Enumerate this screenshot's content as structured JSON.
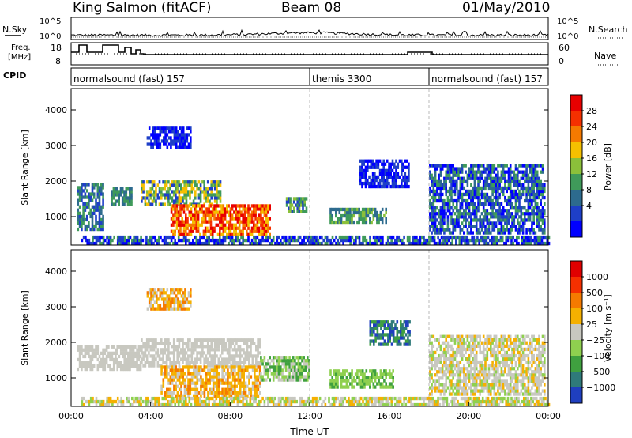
{
  "header": {
    "station": "King Salmon (fitACF)",
    "beam": "Beam 08",
    "date": "01/May/2010"
  },
  "noise_panel": {
    "left_label": "N.Sky",
    "right_label": "N.Search",
    "tick_top": "10^5",
    "tick_bottom": "10^0"
  },
  "freq_panel": {
    "left_label": "Freq.",
    "left_unit": "[MHz]",
    "right_label": "Nave",
    "left_ticks": [
      "18",
      "8"
    ],
    "right_ticks": [
      "60",
      "0"
    ]
  },
  "cpid_panel": {
    "label": "CPID",
    "segments": [
      {
        "text": "normalsound (fast) 157",
        "start": 0,
        "end": 12
      },
      {
        "text": "themis 3300",
        "start": 12,
        "end": 18
      },
      {
        "text": "normalsound (fast) 157",
        "start": 18,
        "end": 24
      }
    ]
  },
  "chart_data": [
    {
      "type": "heatmap",
      "name": "power",
      "ylabel": "Slant Range [km]",
      "ylim": [
        200,
        4600
      ],
      "yticks": [
        "4000",
        "3000",
        "2000",
        "1000"
      ],
      "xlim": [
        0,
        24
      ],
      "colorbar": {
        "label": "Power [dB]",
        "ticks": [
          "28",
          "24",
          "20",
          "16",
          "12",
          "8",
          "4"
        ],
        "colors": [
          "#0000ff",
          "#1e3fc8",
          "#2d6b8e",
          "#3f9a5a",
          "#8bc03a",
          "#f5c000",
          "#f57a00",
          "#f53000",
          "#e80000"
        ]
      }
    },
    {
      "type": "heatmap",
      "name": "velocity",
      "ylabel": "Slant Range [km]",
      "ylim": [
        200,
        4600
      ],
      "yticks": [
        "4000",
        "3000",
        "2000",
        "1000"
      ],
      "xlabel": "Time UT",
      "xticks": [
        "00:00",
        "04:00",
        "08:00",
        "12:00",
        "16:00",
        "20:00",
        "00:00"
      ],
      "xlim": [
        0,
        24
      ],
      "colorbar": {
        "label": "Velocity [m s⁻¹]",
        "ticks": [
          "1000",
          "500",
          "100",
          "25",
          "−25",
          "−100",
          "−500",
          "−1000"
        ],
        "colors": [
          "#1f3fbf",
          "#2f7a7a",
          "#3fa03f",
          "#8fd04f",
          "#c8c8c0",
          "#f5b000",
          "#f57a00",
          "#f53000",
          "#e00000"
        ]
      }
    }
  ]
}
